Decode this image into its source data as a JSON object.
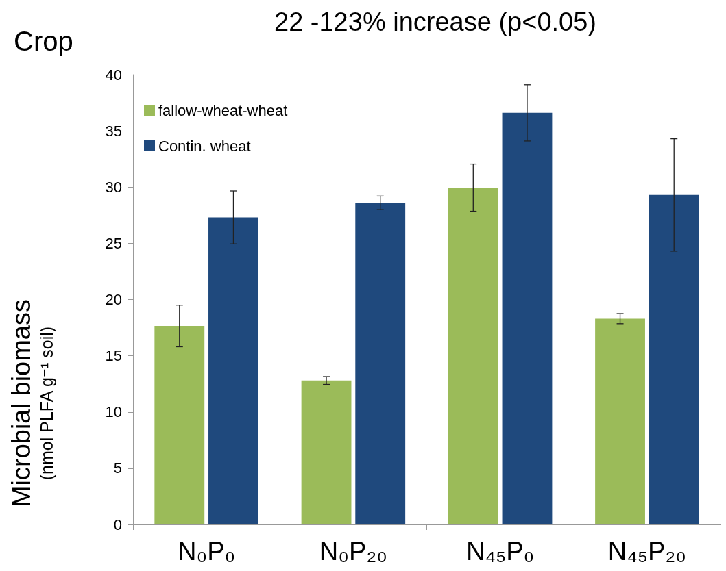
{
  "chart_data": {
    "type": "bar",
    "title": "22 -123% increase (p<0.05)",
    "ylabel": "Microbial biomass\n(nmol PLFA g⁻¹ soil)",
    "annotations": [
      "Crop"
    ],
    "categories": [
      "N₀P₀",
      "N₀P₂₀",
      "N₄₅P₀",
      "N₄₅P₂₀"
    ],
    "series": [
      {
        "name": "fallow-wheat-wheat",
        "color": "#9bbb59",
        "values": [
          17.65,
          12.8,
          29.95,
          18.3
        ],
        "errors": [
          1.85,
          0.35,
          2.1,
          0.45
        ]
      },
      {
        "name": "Contin. wheat",
        "color": "#1f497d",
        "values": [
          27.3,
          28.6,
          36.6,
          29.3
        ],
        "errors": [
          2.35,
          0.6,
          2.5,
          5.0
        ]
      }
    ],
    "ylim": [
      0,
      40
    ],
    "yticks": [
      0,
      5,
      10,
      15,
      20,
      25,
      30,
      35,
      40
    ],
    "grid": false,
    "legend": "top left"
  }
}
